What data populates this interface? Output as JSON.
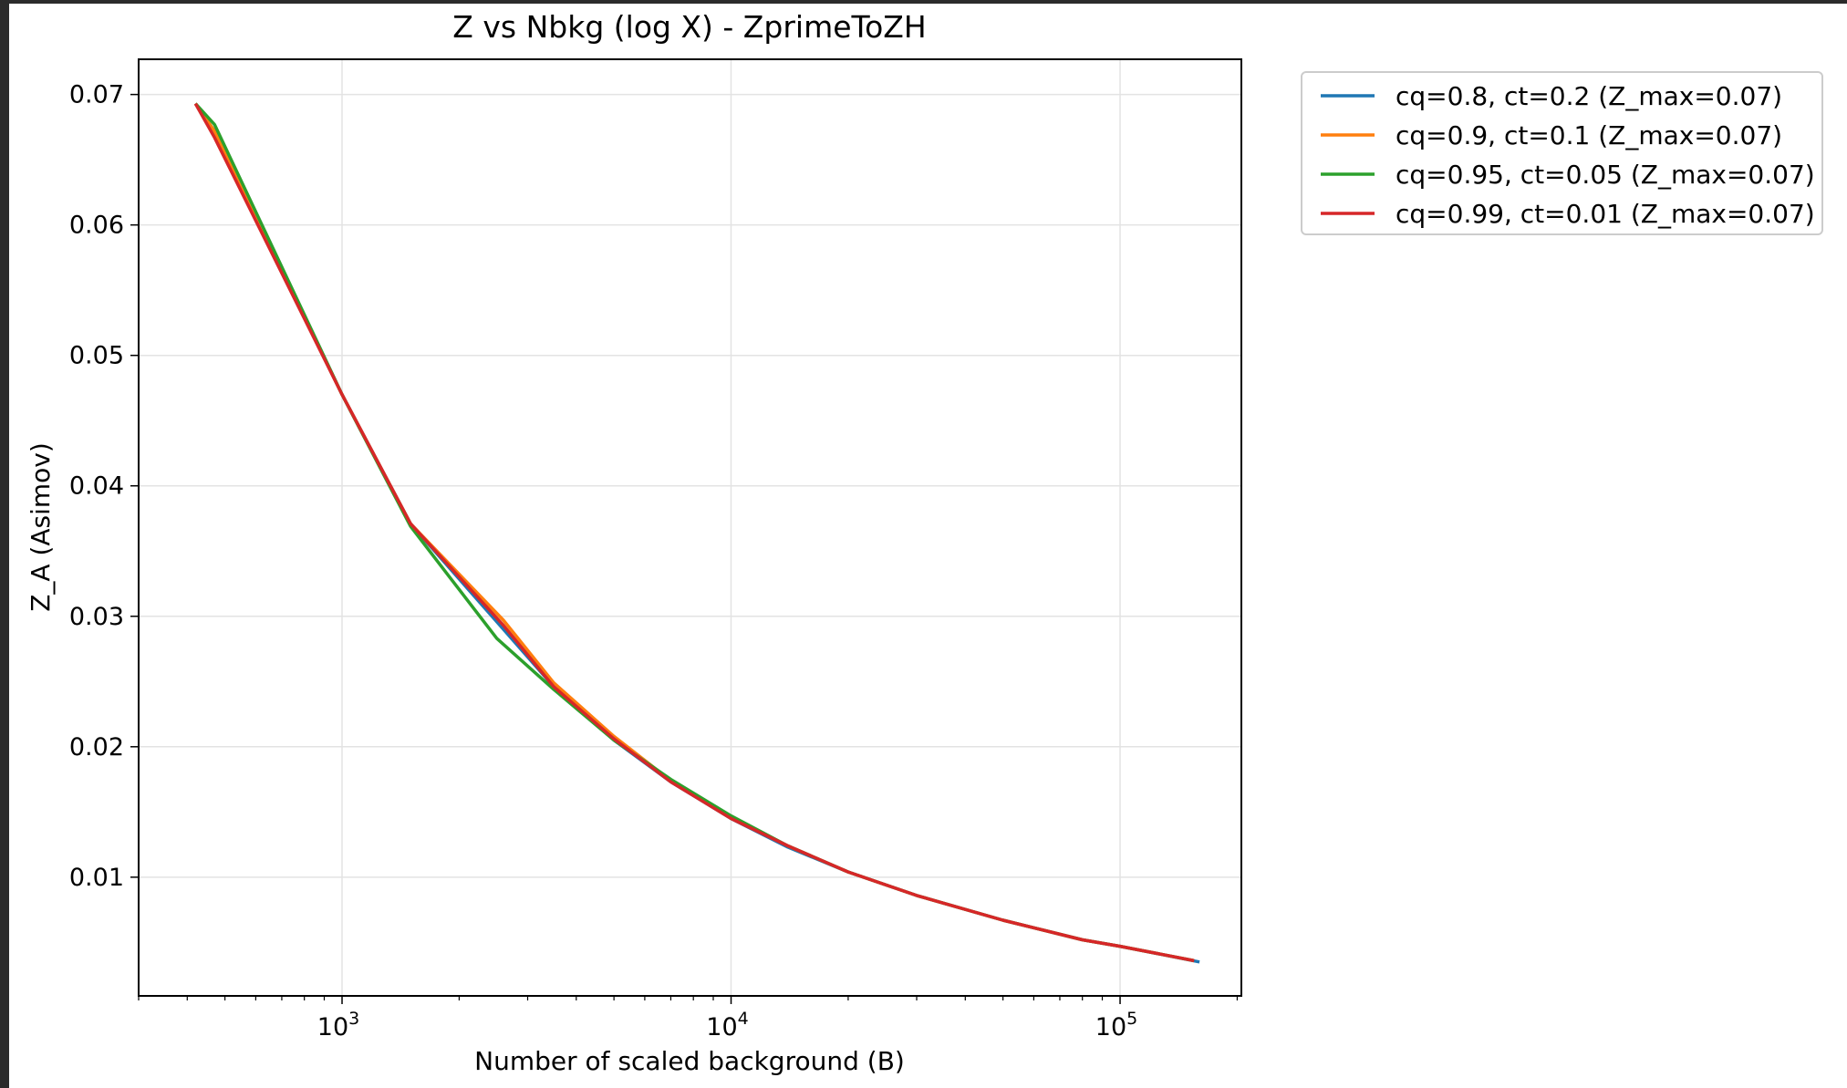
{
  "chart_data": {
    "type": "line",
    "title": "Z vs Nbkg (log X) - ZprimeToZH",
    "xlabel": "Number of scaled background (B)",
    "ylabel": "Z_A (Asimov)",
    "xscale": "log",
    "xlim": [
      300,
      205000
    ],
    "ylim": [
      0.0009,
      0.0727
    ],
    "x_ticks": [
      {
        "value": 1000,
        "base": "10",
        "exp": "3"
      },
      {
        "value": 10000,
        "base": "10",
        "exp": "4"
      },
      {
        "value": 100000,
        "base": "10",
        "exp": "5"
      }
    ],
    "y_ticks": [
      {
        "value": 0.01,
        "label": "0.01"
      },
      {
        "value": 0.02,
        "label": "0.02"
      },
      {
        "value": 0.03,
        "label": "0.03"
      },
      {
        "value": 0.04,
        "label": "0.04"
      },
      {
        "value": 0.05,
        "label": "0.05"
      },
      {
        "value": 0.06,
        "label": "0.06"
      },
      {
        "value": 0.07,
        "label": "0.07"
      }
    ],
    "grid": true,
    "legend_position": "outside-top-right",
    "series": [
      {
        "name": "cq=0.8, ct=0.2 (Z_max=0.07)",
        "color": "#1f77b4",
        "x": [
          420,
          470,
          1000,
          1500,
          2600,
          3500,
          5000,
          7000,
          10000,
          14000,
          20000,
          30000,
          50000,
          80000,
          100000,
          160000
        ],
        "y": [
          0.0693,
          0.0672,
          0.047,
          0.0371,
          0.029,
          0.0246,
          0.0205,
          0.0173,
          0.0145,
          0.0123,
          0.0104,
          0.0086,
          0.0067,
          0.0052,
          0.0047,
          0.0035
        ]
      },
      {
        "name": "cq=0.9, ct=0.1 (Z_max=0.07)",
        "color": "#ff7f0e",
        "x": [
          420,
          470,
          1000,
          1500,
          2600,
          3500,
          5000,
          7000,
          10000,
          14000,
          20000,
          30000,
          50000,
          80000,
          100000,
          155000
        ],
        "y": [
          0.0693,
          0.0672,
          0.047,
          0.0371,
          0.0297,
          0.0249,
          0.0208,
          0.0174,
          0.0146,
          0.0124,
          0.0104,
          0.0086,
          0.0067,
          0.0052,
          0.0047,
          0.0036
        ]
      },
      {
        "name": "cq=0.95, ct=0.05 (Z_max=0.07)",
        "color": "#2ca02c",
        "x": [
          420,
          470,
          1000,
          1500,
          2500,
          3500,
          5000,
          7000,
          10000,
          14000,
          20000,
          30000,
          50000,
          80000,
          100000,
          155000
        ],
        "y": [
          0.0693,
          0.0677,
          0.047,
          0.0369,
          0.0283,
          0.0244,
          0.0205,
          0.0175,
          0.0147,
          0.0124,
          0.0104,
          0.0086,
          0.0067,
          0.0052,
          0.0047,
          0.0036
        ]
      },
      {
        "name": "cq=0.99, ct=0.01 (Z_max=0.07)",
        "color": "#d62728",
        "x": [
          420,
          470,
          1000,
          1500,
          2600,
          3500,
          5000,
          7000,
          10000,
          14000,
          20000,
          30000,
          50000,
          80000,
          100000,
          155000
        ],
        "y": [
          0.0693,
          0.0667,
          0.047,
          0.0371,
          0.0293,
          0.0246,
          0.0206,
          0.0173,
          0.0145,
          0.0124,
          0.0104,
          0.0086,
          0.0067,
          0.0052,
          0.0047,
          0.0036
        ]
      }
    ]
  }
}
